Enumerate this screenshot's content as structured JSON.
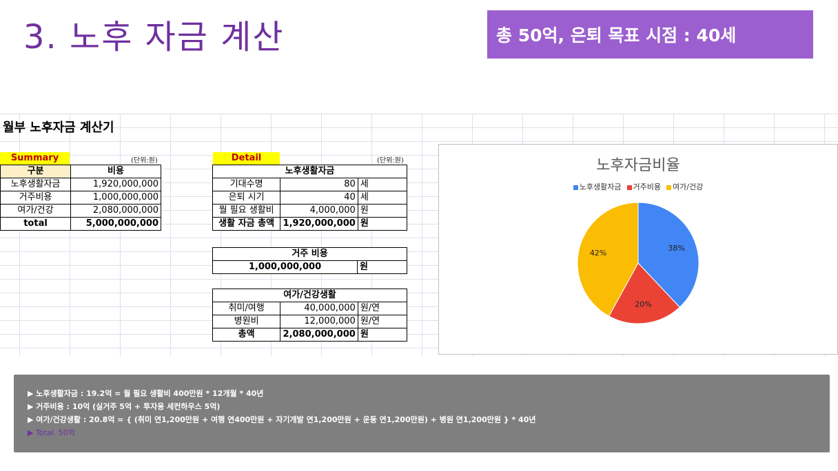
{
  "slide": {
    "title": "3. 노후 자금 계산",
    "badge": "총 50억, 은퇴 목표 시점 : 40세"
  },
  "sheet": {
    "title": "월부 노후자금 계산기"
  },
  "summary": {
    "label": "Summary",
    "unit": "(단위:원)",
    "header": [
      "구분",
      "비용"
    ],
    "rows": [
      [
        "노후생활자금",
        "1,920,000,000"
      ],
      [
        "거주비용",
        "1,000,000,000"
      ],
      [
        "여가/건강",
        "2,080,000,000"
      ]
    ],
    "total": [
      "total",
      "5,000,000,000"
    ]
  },
  "detail": {
    "label": "Detail",
    "unit": "(단위:원)",
    "retirement": {
      "header": "노후생활자금",
      "rows": [
        [
          "기대수명",
          "80",
          "세"
        ],
        [
          "은퇴 시기",
          "40",
          "세"
        ],
        [
          "뭘 필요 생활비",
          "4,000,000",
          "원"
        ]
      ],
      "total": [
        "생활 자금 총액",
        "1,920,000,000",
        "원"
      ]
    },
    "housing": {
      "header": "거주 비용",
      "value": "1,000,000,000",
      "unit": "원"
    },
    "leisure": {
      "header": "여가/건강생활",
      "rows": [
        [
          "취미/여행",
          "40,000,000",
          "원/연"
        ],
        [
          "병원비",
          "12,000,000",
          "원/연"
        ]
      ],
      "total": [
        "총액",
        "2,080,000,000",
        "원"
      ]
    }
  },
  "chart_data": {
    "type": "pie",
    "title": "노후자금비율",
    "categories": [
      "노후생활자금",
      "거주비용",
      "여가/건강"
    ],
    "values": [
      38,
      20,
      42
    ],
    "labels": [
      "38%",
      "20%",
      "42%"
    ],
    "colors": [
      "#4285f4",
      "#ea4335",
      "#fbbc04"
    ],
    "legend": "top"
  },
  "notes": [
    "▶ 노후생활자금 : 19.2억 = 월 필요 생활비 400만원 * 12개월 * 40년",
    "▶ 거주비용 : 10억 (실거주 5억 + 투자용 세컨하우스 5억)",
    "▶ 여가/건강생활 : 20.8억 = { (취미 연1,200만원 + 여행 연400만원 + 자기개발 연1,200만원 + 운동 연1,200만원) + 병원 연1,200만원 } * 40년",
    "▶ Total. 50억"
  ]
}
